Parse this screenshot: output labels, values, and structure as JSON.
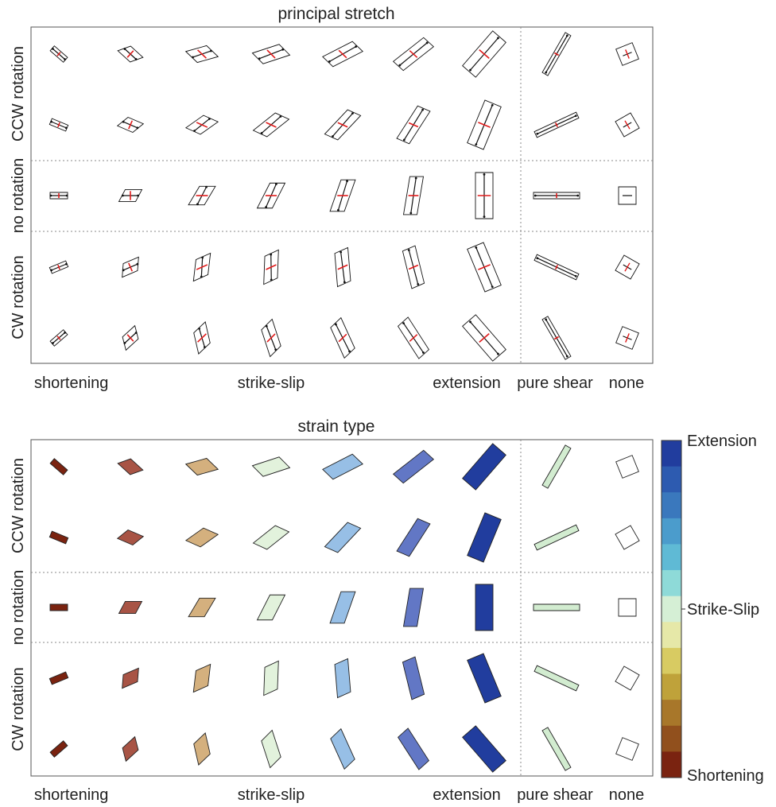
{
  "panels": [
    {
      "title": "principal stretch",
      "mode": "stretch",
      "row_labels": [
        "CCW rotation",
        "no rotation",
        "CW rotation"
      ],
      "column_labels": [
        "shortening",
        "strike-slip",
        "extension",
        "pure shear",
        "none"
      ]
    },
    {
      "title": "strain type",
      "mode": "fill",
      "row_labels": [
        "CCW rotation",
        "no rotation",
        "CW rotation"
      ],
      "column_labels": [
        "shortening",
        "strike-slip",
        "extension",
        "pure shear",
        "none"
      ]
    }
  ],
  "colorbar": {
    "labels": [
      "Extension",
      "Strike-Slip",
      "Shortening"
    ],
    "colors_top_to_bottom": [
      "#213d9e",
      "#2d5bb0",
      "#3a78bd",
      "#4b9ccc",
      "#5fbad5",
      "#8edad8",
      "#d5efd5",
      "#e6e8a8",
      "#d8cb62",
      "#bfa23a",
      "#a8772a",
      "#91501d",
      "#7a2310"
    ]
  },
  "column_colors": [
    "#7a2310",
    "#a85445",
    "#d4b07e",
    "#e2f2dc",
    "#97bfe6",
    "#6277c5",
    "#213d9e",
    "#d2ecd0",
    "#ffffff"
  ],
  "stretch_colors": {
    "outline": "#111111",
    "long_axis": "#111111",
    "short_axis": "#e01b1b"
  }
}
